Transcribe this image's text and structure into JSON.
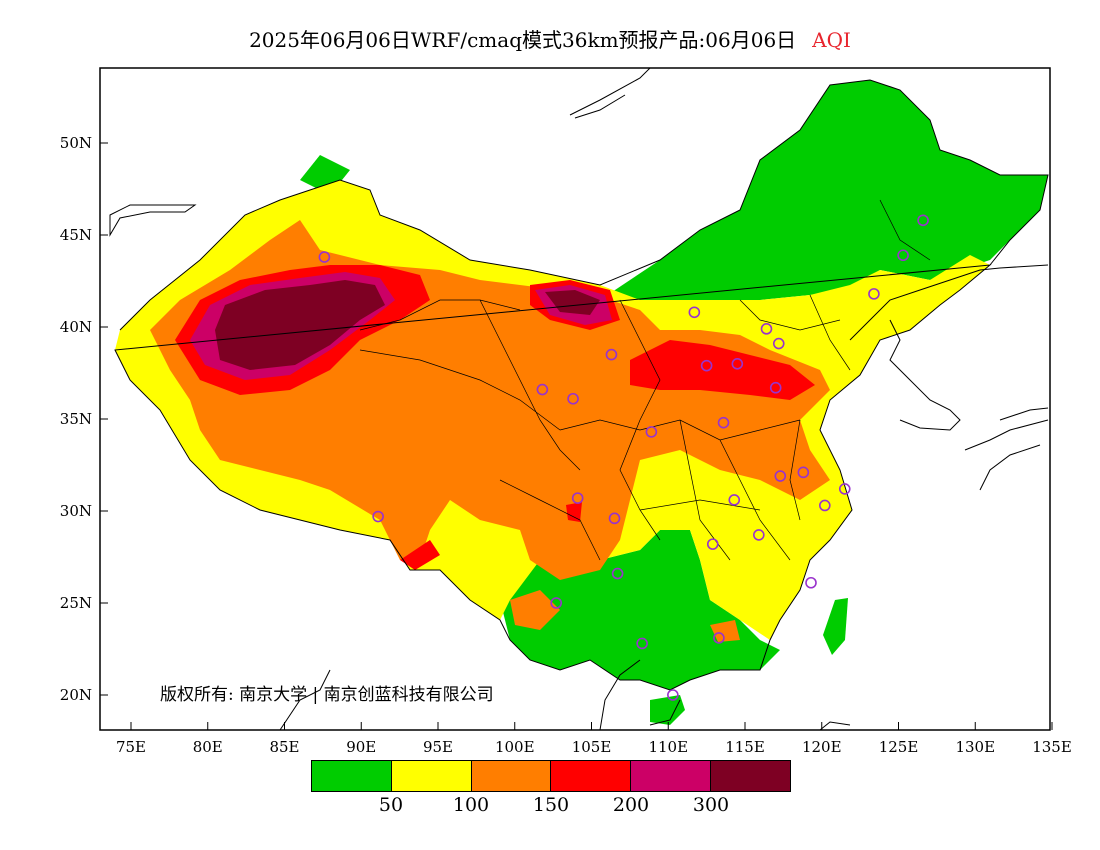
{
  "title": {
    "main": "2025年06月06日WRF/cmaq模式36km预报产品:06月06日",
    "variable": "AQI"
  },
  "map": {
    "lat_labels": [
      "50N",
      "45N",
      "40N",
      "35N",
      "30N",
      "25N",
      "20N"
    ],
    "lon_labels": [
      "75E",
      "80E",
      "85E",
      "90E",
      "95E",
      "100E",
      "105E",
      "110E",
      "115E",
      "120E",
      "125E",
      "130E",
      "135E"
    ],
    "copyright": "版权所有: 南京大学 | 南京创蓝科技有限公司",
    "stations": [
      {
        "lon": 87.6,
        "lat": 43.8
      },
      {
        "lon": 91.1,
        "lat": 29.7
      },
      {
        "lon": 101.8,
        "lat": 36.6
      },
      {
        "lon": 103.8,
        "lat": 36.1
      },
      {
        "lon": 106.3,
        "lat": 38.5
      },
      {
        "lon": 111.7,
        "lat": 40.8
      },
      {
        "lon": 112.5,
        "lat": 37.9
      },
      {
        "lon": 114.5,
        "lat": 38.0
      },
      {
        "lon": 116.4,
        "lat": 39.9
      },
      {
        "lon": 117.2,
        "lat": 39.1
      },
      {
        "lon": 117.0,
        "lat": 36.7
      },
      {
        "lon": 113.6,
        "lat": 34.8
      },
      {
        "lon": 108.9,
        "lat": 34.3
      },
      {
        "lon": 104.1,
        "lat": 30.7
      },
      {
        "lon": 106.5,
        "lat": 29.6
      },
      {
        "lon": 106.7,
        "lat": 26.6
      },
      {
        "lon": 102.7,
        "lat": 25.0
      },
      {
        "lon": 108.3,
        "lat": 22.8
      },
      {
        "lon": 110.3,
        "lat": 20.0
      },
      {
        "lon": 113.3,
        "lat": 23.1
      },
      {
        "lon": 112.9,
        "lat": 28.2
      },
      {
        "lon": 114.3,
        "lat": 30.6
      },
      {
        "lon": 115.9,
        "lat": 28.7
      },
      {
        "lon": 117.3,
        "lat": 31.9
      },
      {
        "lon": 118.8,
        "lat": 32.1
      },
      {
        "lon": 120.2,
        "lat": 30.3
      },
      {
        "lon": 121.5,
        "lat": 31.2
      },
      {
        "lon": 119.3,
        "lat": 26.1
      },
      {
        "lon": 123.4,
        "lat": 41.8
      },
      {
        "lon": 125.3,
        "lat": 43.9
      },
      {
        "lon": 126.6,
        "lat": 45.8
      }
    ]
  },
  "legend": {
    "colors": [
      "#00cc00",
      "#ffff00",
      "#ff7e00",
      "#ff0000",
      "#cc0066",
      "#7e0023"
    ],
    "labels": [
      "50",
      "100",
      "150",
      "200",
      "300"
    ]
  }
}
